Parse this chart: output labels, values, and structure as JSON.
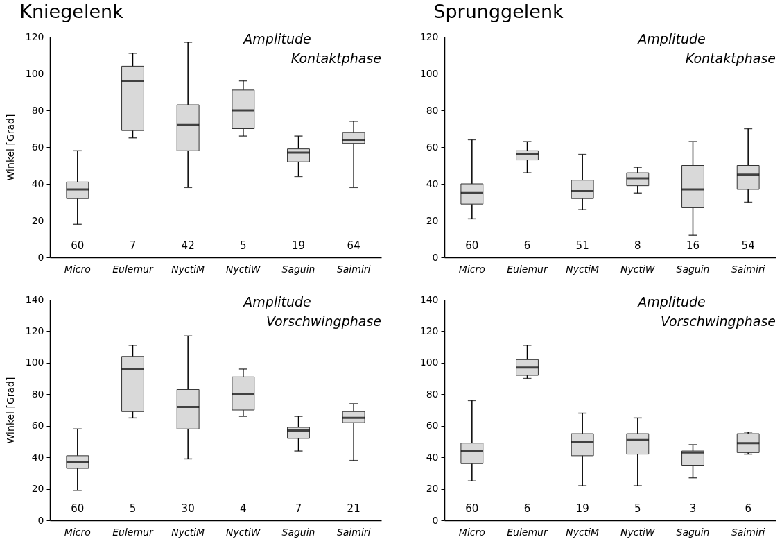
{
  "chart_data": [
    {
      "type": "box",
      "title": "Kniegelenk",
      "ylabel": "Winkel [Grad]",
      "categories": [
        "Micro",
        "Eulemur",
        "NyctiM",
        "NyctiW",
        "Saguin",
        "Saimiri"
      ],
      "color": "#d9d9d9",
      "ylim": [
        0,
        120
      ],
      "yticks": [
        0,
        20,
        40,
        60,
        80,
        100,
        120
      ],
      "grid": false,
      "boxes": [
        {
          "low": 18,
          "q1": 32,
          "median": 37,
          "q3": 41,
          "high": 58
        },
        {
          "low": 65,
          "q1": 69,
          "median": 96,
          "q3": 104,
          "high": 111
        },
        {
          "low": 38,
          "q1": 58,
          "median": 72,
          "q3": 83,
          "high": 117
        },
        {
          "low": 66,
          "q1": 70,
          "median": 80,
          "q3": 91,
          "high": 96
        },
        {
          "low": 44,
          "q1": 52,
          "median": 57,
          "q3": 59,
          "high": 66
        },
        {
          "low": 38,
          "q1": 62,
          "median": 64,
          "q3": 68,
          "high": 74
        }
      ],
      "annotations": [
        "Amplitude",
        "Kontaktphase",
        "60",
        "7",
        "42",
        "5",
        "19",
        "64"
      ]
    },
    {
      "type": "box",
      "title": "Sprunggelenk",
      "categories": [
        "Micro",
        "Eulemur",
        "NyctiM",
        "NyctiW",
        "Saguin",
        "Saimiri"
      ],
      "color": "#d9d9d9",
      "ylim": [
        0,
        120
      ],
      "yticks": [
        0,
        20,
        40,
        60,
        80,
        100,
        120
      ],
      "grid": false,
      "boxes": [
        {
          "low": 21,
          "q1": 29,
          "median": 35,
          "q3": 40,
          "high": 64
        },
        {
          "low": 46,
          "q1": 53,
          "median": 56,
          "q3": 58,
          "high": 63
        },
        {
          "low": 26,
          "q1": 32,
          "median": 36,
          "q3": 42,
          "high": 56
        },
        {
          "low": 35,
          "q1": 39,
          "median": 43,
          "q3": 46,
          "high": 49
        },
        {
          "low": 12,
          "q1": 27,
          "median": 37,
          "q3": 50,
          "high": 63
        },
        {
          "low": 30,
          "q1": 37,
          "median": 45,
          "q3": 50,
          "high": 70
        }
      ],
      "annotations": [
        "Amplitude",
        "Kontaktphase",
        "60",
        "6",
        "51",
        "8",
        "16",
        "54"
      ]
    },
    {
      "type": "box",
      "ylabel": "Winkel [Grad]",
      "categories": [
        "Micro",
        "Eulemur",
        "NyctiM",
        "NyctiW",
        "Saguin",
        "Saimiri"
      ],
      "color": "#d9d9d9",
      "ylim": [
        0,
        140
      ],
      "yticks": [
        0,
        20,
        40,
        60,
        80,
        100,
        120,
        140
      ],
      "grid": false,
      "boxes": [
        {
          "low": 19,
          "q1": 33,
          "median": 37,
          "q3": 41,
          "high": 58
        },
        {
          "low": 65,
          "q1": 69,
          "median": 96,
          "q3": 104,
          "high": 111
        },
        {
          "low": 39,
          "q1": 58,
          "median": 72,
          "q3": 83,
          "high": 117
        },
        {
          "low": 66,
          "q1": 70,
          "median": 80,
          "q3": 91,
          "high": 96
        },
        {
          "low": 44,
          "q1": 52,
          "median": 57,
          "q3": 59,
          "high": 66
        },
        {
          "low": 38,
          "q1": 62,
          "median": 65,
          "q3": 69,
          "high": 74
        }
      ],
      "annotations": [
        "Amplitude",
        "Vorschwingphase",
        "60",
        "5",
        "30",
        "4",
        "7",
        "21"
      ]
    },
    {
      "type": "box",
      "categories": [
        "Micro",
        "Eulemur",
        "NyctiM",
        "NyctiW",
        "Saguin",
        "Saimiri"
      ],
      "color": "#d9d9d9",
      "ylim": [
        0,
        140
      ],
      "yticks": [
        0,
        20,
        40,
        60,
        80,
        100,
        120,
        140
      ],
      "grid": false,
      "boxes": [
        {
          "low": 25,
          "q1": 36,
          "median": 44,
          "q3": 49,
          "high": 76
        },
        {
          "low": 90,
          "q1": 92,
          "median": 97,
          "q3": 102,
          "high": 111
        },
        {
          "low": 22,
          "q1": 41,
          "median": 50,
          "q3": 55,
          "high": 68
        },
        {
          "low": 22,
          "q1": 42,
          "median": 51,
          "q3": 55,
          "high": 65
        },
        {
          "low": 27,
          "q1": 35,
          "median": 43,
          "q3": 44,
          "high": 48
        },
        {
          "low": 42,
          "q1": 43,
          "median": 49,
          "q3": 55,
          "high": 56
        }
      ],
      "annotations": [
        "Amplitude",
        "Vorschwingphase",
        "60",
        "6",
        "19",
        "5",
        "3",
        "6"
      ]
    }
  ]
}
